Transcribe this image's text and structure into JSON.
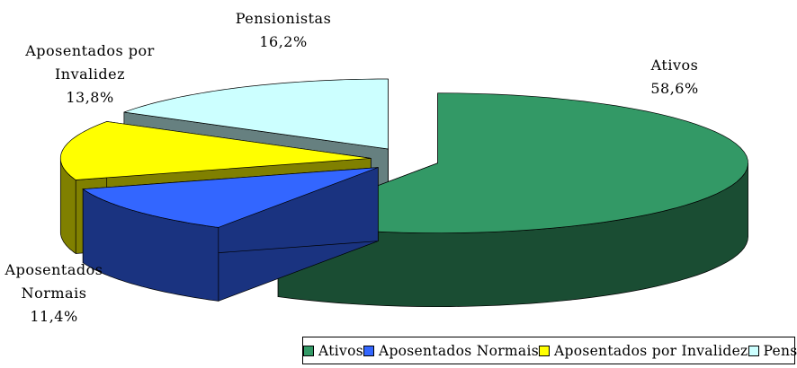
{
  "chart_data": {
    "type": "pie3d",
    "categories": [
      "Ativos",
      "Aposentados Normais",
      "Aposentados por Invalidez",
      "Pensionistas"
    ],
    "values": [
      58.6,
      11.4,
      13.8,
      16.2
    ],
    "value_labels": [
      "58,6%",
      "11,4%",
      "13,8%",
      "16,2%"
    ],
    "colors": [
      "#339966",
      "#3366ff",
      "#ffff00",
      "#ccffff"
    ],
    "legend": "bottom"
  }
}
